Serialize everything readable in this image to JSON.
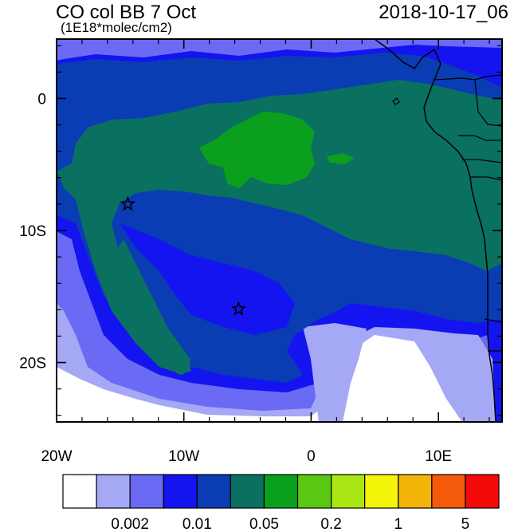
{
  "header": {
    "title": "CO col BB 7 Oct",
    "units": "(1E18*molec/cm2)",
    "datetime": "2018-10-17_06"
  },
  "map": {
    "lon_range": [
      -20,
      15
    ],
    "lat_range": [
      -24.5,
      4.5
    ],
    "x_ticks": [
      {
        "value": -20,
        "label": "20W"
      },
      {
        "value": -10,
        "label": "10W"
      },
      {
        "value": 0,
        "label": "0"
      },
      {
        "value": 10,
        "label": "10E"
      }
    ],
    "y_ticks": [
      {
        "value": 0,
        "label": "0"
      },
      {
        "value": -10,
        "label": "10S"
      },
      {
        "value": -20,
        "label": "20S"
      }
    ],
    "markers": [
      {
        "type": "star",
        "lon": -14.4,
        "lat": -8.0
      },
      {
        "type": "star",
        "lon": -5.7,
        "lat": -15.95
      }
    ]
  },
  "colorbar": {
    "colors": [
      "#ffffff",
      "#a5a8f5",
      "#6a6af5",
      "#1414f0",
      "#0a3cb4",
      "#0a7060",
      "#0aa01e",
      "#5ac814",
      "#aae614",
      "#f5f50a",
      "#f5b40a",
      "#f55a0a",
      "#f50a0a"
    ],
    "labels": [
      {
        "after_index": 1,
        "text": "0.002"
      },
      {
        "after_index": 3,
        "text": "0.01"
      },
      {
        "after_index": 5,
        "text": "0.05"
      },
      {
        "after_index": 7,
        "text": "0.2"
      },
      {
        "after_index": 9,
        "text": "1"
      },
      {
        "after_index": 11,
        "text": "5"
      }
    ]
  }
}
